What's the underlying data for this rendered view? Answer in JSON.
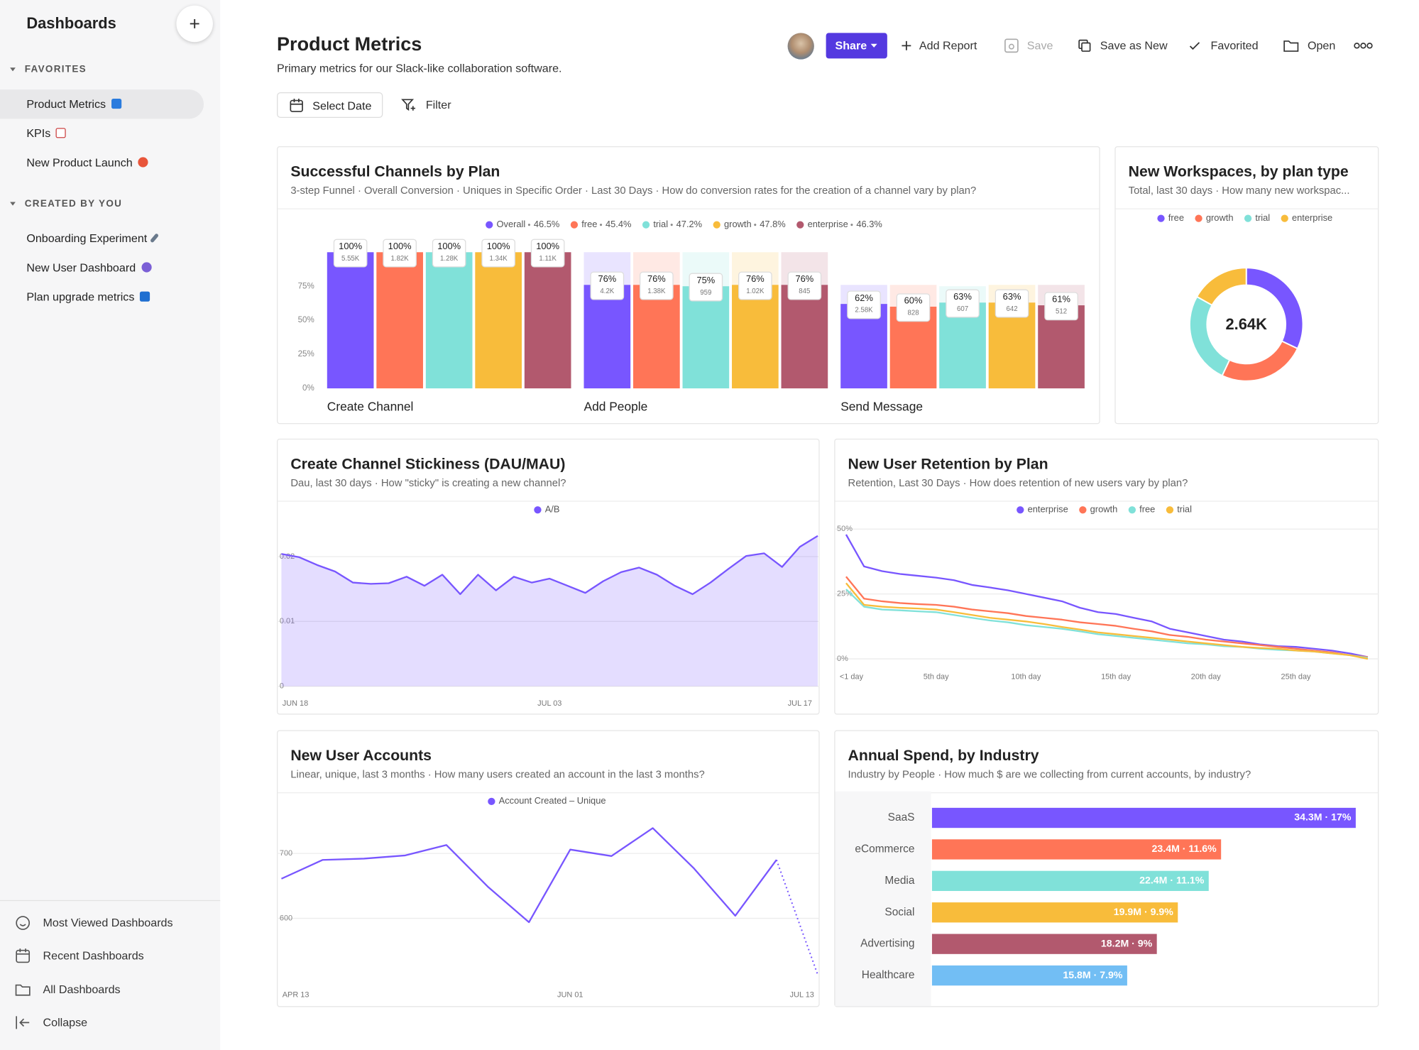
{
  "sidebar": {
    "title": "Dashboards",
    "sections": [
      {
        "heading": "FAVORITES",
        "items": [
          "Product Metrics",
          "KPIs",
          "New Product Launch"
        ]
      },
      {
        "heading": "CREATED BY YOU",
        "items": [
          "Onboarding Experiment",
          "New User Dashboard",
          "Plan upgrade metrics"
        ]
      }
    ],
    "footer_links": [
      "Most Viewed Dashboards",
      "Recent Dashboards",
      "All Dashboards",
      "Collapse"
    ]
  },
  "header": {
    "title": "Product Metrics",
    "subtitle": "Primary metrics for our Slack-like collaboration software.",
    "actions": [
      "Share",
      "Add Report",
      "Save",
      "Save as New",
      "Favorited",
      "Open"
    ],
    "controls": [
      "Select Date",
      "Filter"
    ]
  },
  "chart_data": [
    {
      "type": "bar",
      "title": "Successful Channels by Plan",
      "subtitle": "3-step Funnel · Overall Conversion · Uniques in Specific Order · Last 30 Days · How do conversion rates for the creation of a channel vary by plan?",
      "categories": [
        "Create Channel",
        "Add People",
        "Send Message"
      ],
      "series": [
        {
          "name": "Overall",
          "color": "#7856ff",
          "conversion_label": "46.5%",
          "values": [
            100,
            76,
            62
          ],
          "value_labels": [
            "100%",
            "76%",
            "62%"
          ],
          "count_labels": [
            "5.55K",
            "4.2K",
            "2.58K"
          ]
        },
        {
          "name": "free",
          "color": "#ff7557",
          "conversion_label": "45.4%",
          "values": [
            100,
            76,
            60
          ],
          "value_labels": [
            "100%",
            "76%",
            "60%"
          ],
          "count_labels": [
            "1.82K",
            "1.38K",
            "828"
          ]
        },
        {
          "name": "trial",
          "color": "#80e1d9",
          "conversion_label": "47.2%",
          "values": [
            100,
            75,
            63
          ],
          "value_labels": [
            "100%",
            "75%",
            "63%"
          ],
          "count_labels": [
            "1.28K",
            "959",
            "607"
          ]
        },
        {
          "name": "growth",
          "color": "#f8bc3b",
          "conversion_label": "47.8%",
          "values": [
            100,
            76,
            63
          ],
          "value_labels": [
            "100%",
            "76%",
            "63%"
          ],
          "count_labels": [
            "1.34K",
            "1.02K",
            "642"
          ]
        },
        {
          "name": "enterprise",
          "color": "#b2596e",
          "conversion_label": "46.3%",
          "values": [
            100,
            76,
            61
          ],
          "value_labels": [
            "100%",
            "76%",
            "61%"
          ],
          "count_labels": [
            "1.11K",
            "845",
            "512"
          ]
        }
      ],
      "ylim": [
        0,
        100
      ],
      "yticks": [
        {
          "value": 0,
          "label": "0%"
        },
        {
          "value": 25,
          "label": "25%"
        },
        {
          "value": 50,
          "label": "50%"
        },
        {
          "value": 75,
          "label": "75%"
        }
      ]
    },
    {
      "type": "pie",
      "donut": true,
      "title": "New Workspaces, by plan type",
      "subtitle": "Total, last 30 days · How many new workspac...",
      "total_label": "2.64K",
      "categories": [
        "free",
        "growth",
        "trial",
        "enterprise"
      ],
      "values": [
        845,
        660,
        690,
        445
      ],
      "colors": [
        "#7856ff",
        "#ff7557",
        "#80e1d9",
        "#f8bc3b"
      ]
    },
    {
      "type": "area",
      "title": "Create Channel Stickiness (DAU/MAU)",
      "subtitle": "Dau, last 30 days · How \"sticky\" is creating a new channel?",
      "categories": [
        "JUN 18",
        null,
        null,
        null,
        null,
        null,
        null,
        null,
        null,
        null,
        null,
        null,
        null,
        null,
        null,
        "JUL 03",
        null,
        null,
        null,
        null,
        null,
        null,
        null,
        null,
        null,
        null,
        null,
        null,
        null,
        "JUL 17",
        null
      ],
      "series": [
        {
          "name": "A/B",
          "color": "#7856ff",
          "values": [
            0.0204,
            0.0199,
            0.0187,
            0.0177,
            0.016,
            0.0158,
            0.0159,
            0.0169,
            0.0155,
            0.0172,
            0.0142,
            0.0172,
            0.0148,
            0.0169,
            0.016,
            0.0166,
            0.0155,
            0.0144,
            0.0162,
            0.0176,
            0.0183,
            0.0172,
            0.0155,
            0.0142,
            0.016,
            0.0181,
            0.0201,
            0.0205,
            0.0184,
            0.0215,
            0.0232
          ]
        }
      ],
      "ylim": [
        0,
        0.0248
      ],
      "yticks": [
        0,
        0.01,
        0.02
      ],
      "grid": true
    },
    {
      "type": "line",
      "title": "New User Retention by Plan",
      "subtitle": "Retention, Last 30 Days · How does retention of new users vary by plan?",
      "categories": [
        "<1 day",
        null,
        null,
        null,
        null,
        "5th day",
        null,
        null,
        null,
        null,
        "10th day",
        null,
        null,
        null,
        null,
        "15th day",
        null,
        null,
        null,
        null,
        "20th day",
        null,
        null,
        null,
        null,
        "25th day",
        null,
        null,
        null,
        null
      ],
      "series": [
        {
          "name": "enterprise",
          "color": "#7856ff",
          "values": [
            47.9,
            35.6,
            33.8,
            32.7,
            32.0,
            31.3,
            30.3,
            28.5,
            27.5,
            26.4,
            25.0,
            23.6,
            22.2,
            19.7,
            18.0,
            17.3,
            15.8,
            14.4,
            11.6,
            10.2,
            8.8,
            7.4,
            6.7,
            5.6,
            4.9,
            4.6,
            3.9,
            3.2,
            2.1,
            0.7
          ]
        },
        {
          "name": "growth",
          "color": "#ff7557",
          "values": [
            31.7,
            23.2,
            22.2,
            21.5,
            21.1,
            20.8,
            20.1,
            19.0,
            18.3,
            17.6,
            16.5,
            15.8,
            15.1,
            14.1,
            13.4,
            12.7,
            11.6,
            10.6,
            9.2,
            8.5,
            7.4,
            6.7,
            6.0,
            5.3,
            4.6,
            3.9,
            3.2,
            2.5,
            1.4,
            0.7
          ]
        },
        {
          "name": "free",
          "color": "#80e1d9",
          "values": [
            26.8,
            20.1,
            19.0,
            18.7,
            18.3,
            18.0,
            16.9,
            15.8,
            14.8,
            14.1,
            13.0,
            12.3,
            11.6,
            10.6,
            9.5,
            8.8,
            8.1,
            7.4,
            6.7,
            6.0,
            5.6,
            4.9,
            4.6,
            3.9,
            3.5,
            3.2,
            2.8,
            2.1,
            1.4,
            0.4
          ]
        },
        {
          "name": "trial",
          "color": "#f8bc3b",
          "values": [
            29.2,
            20.8,
            20.1,
            19.7,
            19.4,
            19.0,
            18.0,
            16.9,
            15.8,
            15.1,
            14.4,
            13.4,
            12.3,
            11.3,
            10.2,
            9.5,
            8.8,
            8.1,
            7.4,
            6.7,
            6.0,
            5.3,
            4.6,
            4.2,
            3.9,
            3.2,
            2.8,
            2.1,
            1.4,
            0
          ]
        }
      ],
      "ylim": [
        0,
        50
      ],
      "yticks": [
        {
          "value": 0,
          "label": "0%"
        },
        {
          "value": 25,
          "label": "25%"
        },
        {
          "value": 50,
          "label": "50%"
        }
      ],
      "grid": true
    },
    {
      "type": "line",
      "title": "New User Accounts",
      "subtitle": "Linear, unique, last 3 months · How many users created an account in the last 3 months?",
      "categories": [
        "APR 13",
        null,
        null,
        null,
        null,
        null,
        null,
        "JUN 01",
        null,
        null,
        null,
        null,
        null,
        "JUL 13"
      ],
      "series": [
        {
          "name": "Account Created – Unique",
          "color": "#7856ff",
          "values": [
            661,
            690,
            692,
            697,
            713,
            649,
            594,
            706,
            696,
            739,
            677,
            604,
            690,
            513
          ]
        }
      ],
      "ylim": [
        500,
        790
      ],
      "yticks": [
        600,
        700
      ],
      "grid": true,
      "incomplete_last": true
    },
    {
      "type": "barh",
      "title": "Annual Spend, by Industry",
      "subtitle": "Industry by People · How much $ are we collecting from current accounts, by industry?",
      "categories": [
        "SaaS",
        "eCommerce",
        "Media",
        "Social",
        "Advertising",
        "Healthcare"
      ],
      "values": [
        34300000,
        23400000,
        22400000,
        19900000,
        18200000,
        15800000
      ],
      "value_labels": [
        "34.3M · 17%",
        "23.4M · 11.6%",
        "22.4M · 11.1%",
        "19.9M · 9.9%",
        "18.2M · 9%",
        "15.8M · 7.9%"
      ],
      "colors": [
        "#7856ff",
        "#ff7557",
        "#80e1d9",
        "#f8bc3b",
        "#b2596e",
        "#72bef4"
      ],
      "xlim": [
        0,
        35500000
      ]
    }
  ]
}
